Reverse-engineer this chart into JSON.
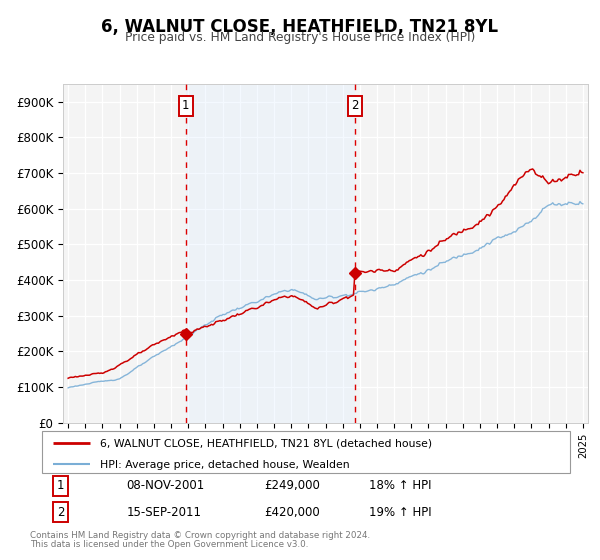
{
  "title": "6, WALNUT CLOSE, HEATHFIELD, TN21 8YL",
  "subtitle": "Price paid vs. HM Land Registry's House Price Index (HPI)",
  "legend_entry1": "6, WALNUT CLOSE, HEATHFIELD, TN21 8YL (detached house)",
  "legend_entry2": "HPI: Average price, detached house, Wealden",
  "annotation1_date": "08-NOV-2001",
  "annotation1_price": "£249,000",
  "annotation1_hpi": "18% ↑ HPI",
  "annotation2_date": "15-SEP-2011",
  "annotation2_price": "£420,000",
  "annotation2_hpi": "19% ↑ HPI",
  "footnote1": "Contains HM Land Registry data © Crown copyright and database right 2024.",
  "footnote2": "This data is licensed under the Open Government Licence v3.0.",
  "xlim_left": 1994.7,
  "xlim_right": 2025.3,
  "ylim_bottom": 0,
  "ylim_top": 950000,
  "yticks": [
    0,
    100000,
    200000,
    300000,
    400000,
    500000,
    600000,
    700000,
    800000,
    900000
  ],
  "ytick_labels": [
    "£0",
    "£100K",
    "£200K",
    "£300K",
    "£400K",
    "£500K",
    "£600K",
    "£700K",
    "£800K",
    "£900K"
  ],
  "sale1_x": 2001.86,
  "sale1_y": 249000,
  "sale2_x": 2011.71,
  "sale2_y": 420000,
  "vline1_x": 2001.86,
  "vline2_x": 2011.71,
  "red_color": "#cc0000",
  "blue_color": "#7aaed6",
  "bg_color": "#ffffff",
  "plot_bg": "#f4f4f4",
  "grid_color": "#ffffff",
  "shade_color": "#ddeeff",
  "vline_color": "#dd0000",
  "n_points": 360
}
